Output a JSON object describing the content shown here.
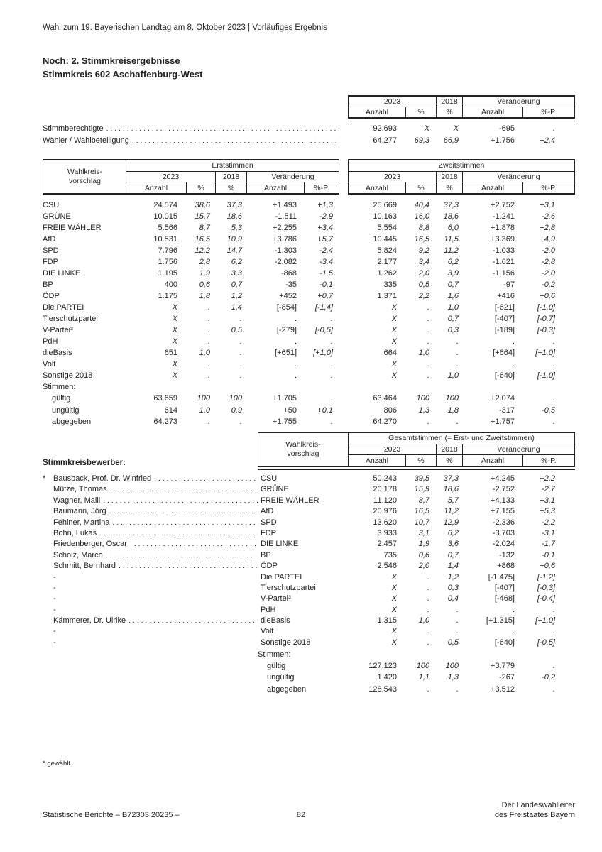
{
  "colors": {
    "text": "#1f1f1f",
    "line": "#222222",
    "background": "#ffffff"
  },
  "page": {
    "top_header": "Wahl zum 19. Bayerischen Landtag am 8. Oktober 2023 | Vorläufiges Ergebnis",
    "title_line1": "Noch: 2. Stimmkreisergebnisse",
    "title_line2": "Stimmkreis 602 Aschaffenburg-West",
    "footnote": "* gewählt",
    "footer": {
      "left": "Statistische Berichte – B72303 20235 –",
      "page_number": "82",
      "right_line1": "Der Landeswahlleiter",
      "right_line2": "des Freistaates Bayern"
    }
  },
  "labels": {
    "y2023": "2023",
    "y2018": "2018",
    "veraenderung": "Veränderung",
    "anzahl": "Anzahl",
    "pct": "%",
    "pctp": "%-P.",
    "wkv_l1": "Wahlkreis-",
    "wkv_l2": "vorschlag",
    "erststimmen": "Erststimmen",
    "zweitstimmen": "Zweitstimmen",
    "gesamtstimmen": "Gesamtstimmen (= Erst- und Zweitstimmen)",
    "stimmen": "Stimmen:",
    "stimmkreisbewerber": "Stimmkreisbewerber:"
  },
  "summary_rows": [
    {
      "label": "Stimmberechtigte",
      "cells": [
        "92.693",
        "X",
        "X",
        "-695",
        "."
      ]
    },
    {
      "label": "Wähler / Wahlbeteiligung",
      "cells": [
        "64.277",
        "69,3",
        "66,9",
        "+1.756",
        "+2,4"
      ]
    }
  ],
  "party_rows": [
    {
      "label": "CSU",
      "erst": [
        "24.574",
        "38,6",
        "37,3",
        "+1.493",
        "+1,3"
      ],
      "zweit": [
        "25.669",
        "40,4",
        "37,3",
        "+2.752",
        "+3,1"
      ]
    },
    {
      "label": "GRÜNE",
      "erst": [
        "10.015",
        "15,7",
        "18,6",
        "-1.511",
        "-2,9"
      ],
      "zweit": [
        "10.163",
        "16,0",
        "18,6",
        "-1.241",
        "-2,6"
      ]
    },
    {
      "label": "FREIE WÄHLER",
      "erst": [
        "5.566",
        "8,7",
        "5,3",
        "+2.255",
        "+3,4"
      ],
      "zweit": [
        "5.554",
        "8,8",
        "6,0",
        "+1.878",
        "+2,8"
      ]
    },
    {
      "label": "AfD",
      "erst": [
        "10.531",
        "16,5",
        "10,9",
        "+3.786",
        "+5,7"
      ],
      "zweit": [
        "10.445",
        "16,5",
        "11,5",
        "+3.369",
        "+4,9"
      ]
    },
    {
      "label": "SPD",
      "erst": [
        "7.796",
        "12,2",
        "14,7",
        "-1.303",
        "-2,4"
      ],
      "zweit": [
        "5.824",
        "9,2",
        "11,2",
        "-1.033",
        "-2,0"
      ]
    },
    {
      "label": "FDP",
      "erst": [
        "1.756",
        "2,8",
        "6,2",
        "-2.082",
        "-3,4"
      ],
      "zweit": [
        "2.177",
        "3,4",
        "6,2",
        "-1.621",
        "-2,8"
      ]
    },
    {
      "label": "DIE LINKE",
      "erst": [
        "1.195",
        "1,9",
        "3,3",
        "-868",
        "-1,5"
      ],
      "zweit": [
        "1.262",
        "2,0",
        "3,9",
        "-1.156",
        "-2,0"
      ]
    },
    {
      "label": "BP",
      "erst": [
        "400",
        "0,6",
        "0,7",
        "-35",
        "-0,1"
      ],
      "zweit": [
        "335",
        "0,5",
        "0,7",
        "-97",
        "-0,2"
      ]
    },
    {
      "label": "ÖDP",
      "erst": [
        "1.175",
        "1,8",
        "1,2",
        "+452",
        "+0,7"
      ],
      "zweit": [
        "1.371",
        "2,2",
        "1,6",
        "+416",
        "+0,6"
      ]
    },
    {
      "label": "Die PARTEI",
      "erst": [
        "X",
        ".",
        "1,4",
        "[-854]",
        "[-1,4]"
      ],
      "zweit": [
        "X",
        ".",
        "1,0",
        "[-621]",
        "[-1,0]"
      ]
    },
    {
      "label": "Tierschutzpartei",
      "erst": [
        "X",
        ".",
        ".",
        ".",
        "."
      ],
      "zweit": [
        "X",
        ".",
        "0,7",
        "[-407]",
        "[-0,7]"
      ]
    },
    {
      "label": "V-Partei³",
      "erst": [
        "X",
        ".",
        "0,5",
        "[-279]",
        "[-0,5]"
      ],
      "zweit": [
        "X",
        ".",
        "0,3",
        "[-189]",
        "[-0,3]"
      ]
    },
    {
      "label": "PdH",
      "erst": [
        "X",
        ".",
        ".",
        ".",
        "."
      ],
      "zweit": [
        "X",
        ".",
        ".",
        ".",
        "."
      ]
    },
    {
      "label": "dieBasis",
      "erst": [
        "651",
        "1,0",
        ".",
        "[+651]",
        "[+1,0]"
      ],
      "zweit": [
        "664",
        "1,0",
        ".",
        "[+664]",
        "[+1,0]"
      ]
    },
    {
      "label": "Volt",
      "erst": [
        "X",
        ".",
        ".",
        ".",
        "."
      ],
      "zweit": [
        "X",
        ".",
        ".",
        ".",
        "."
      ]
    },
    {
      "label": "Sonstige 2018",
      "erst": [
        "X",
        ".",
        ".",
        ".",
        "."
      ],
      "zweit": [
        "X",
        ".",
        "1,0",
        "[-640]",
        "[-1,0]"
      ]
    }
  ],
  "main_stimmen": [
    {
      "label": "gültig",
      "erst": [
        "63.659",
        "100",
        "100",
        "+1.705",
        "."
      ],
      "zweit": [
        "63.464",
        "100",
        "100",
        "+2.074",
        "."
      ]
    },
    {
      "label": "ungültig",
      "erst": [
        "614",
        "1,0",
        "0,9",
        "+50",
        "+0,1"
      ],
      "zweit": [
        "806",
        "1,3",
        "1,8",
        "-317",
        "-0,5"
      ]
    },
    {
      "label": "abgegeben",
      "erst": [
        "64.273",
        ".",
        ".",
        "+1.755",
        "."
      ],
      "zweit": [
        "64.270",
        ".",
        ".",
        "+1.757",
        "."
      ]
    }
  ],
  "candidate_rows": [
    {
      "star": "*",
      "name": "Bausback, Prof. Dr. Winfried",
      "party": "CSU",
      "cells": [
        "50.243",
        "39,5",
        "37,3",
        "+4.245",
        "+2,2"
      ]
    },
    {
      "star": "",
      "name": "Mütze, Thomas",
      "party": "GRÜNE",
      "cells": [
        "20.178",
        "15,9",
        "18,6",
        "-2.752",
        "-2,7"
      ]
    },
    {
      "star": "",
      "name": "Wagner, Maili",
      "party": "FREIE WÄHLER",
      "cells": [
        "11.120",
        "8,7",
        "5,7",
        "+4.133",
        "+3,1"
      ]
    },
    {
      "star": "",
      "name": "Baumann, Jörg",
      "party": "AfD",
      "cells": [
        "20.976",
        "16,5",
        "11,2",
        "+7.155",
        "+5,3"
      ]
    },
    {
      "star": "",
      "name": "Fehlner, Martina",
      "party": "SPD",
      "cells": [
        "13.620",
        "10,7",
        "12,9",
        "-2.336",
        "-2,2"
      ]
    },
    {
      "star": "",
      "name": "Bohn, Lukas",
      "party": "FDP",
      "cells": [
        "3.933",
        "3,1",
        "6,2",
        "-3.703",
        "-3,1"
      ]
    },
    {
      "star": "",
      "name": "Friedenberger, Oscar",
      "party": "DIE LINKE",
      "cells": [
        "2.457",
        "1,9",
        "3,6",
        "-2.024",
        "-1,7"
      ]
    },
    {
      "star": "",
      "name": "Scholz, Marco",
      "party": "BP",
      "cells": [
        "735",
        "0,6",
        "0,7",
        "-132",
        "-0,1"
      ]
    },
    {
      "star": "",
      "name": "Schmitt, Bernhard",
      "party": "ÖDP",
      "cells": [
        "2.546",
        "2,0",
        "1,4",
        "+868",
        "+0,6"
      ]
    },
    {
      "star": "",
      "name": "-",
      "party": "Die PARTEI",
      "cells": [
        "X",
        ".",
        "1,2",
        "[-1.475]",
        "[-1,2]"
      ]
    },
    {
      "star": "",
      "name": "-",
      "party": "Tierschutzpartei",
      "cells": [
        "X",
        ".",
        "0,3",
        "[-407]",
        "[-0,3]"
      ]
    },
    {
      "star": "",
      "name": "-",
      "party": "V-Partei³",
      "cells": [
        "X",
        ".",
        "0,4",
        "[-468]",
        "[-0,4]"
      ]
    },
    {
      "star": "",
      "name": "-",
      "party": "PdH",
      "cells": [
        "X",
        ".",
        ".",
        ".",
        "."
      ]
    },
    {
      "star": "",
      "name": "Kämmerer, Dr. Ulrike",
      "party": "dieBasis",
      "cells": [
        "1.315",
        "1,0",
        ".",
        "[+1.315]",
        "[+1,0]"
      ]
    },
    {
      "star": "",
      "name": "-",
      "party": "Volt",
      "cells": [
        "X",
        ".",
        ".",
        ".",
        "."
      ]
    },
    {
      "star": "",
      "name": "-",
      "party": "Sonstige 2018",
      "cells": [
        "X",
        ".",
        "0,5",
        "[-640]",
        "[-0,5]"
      ]
    }
  ],
  "candidate_stimmen": [
    {
      "label": "gültig",
      "cells": [
        "127.123",
        "100",
        "100",
        "+3.779",
        "."
      ]
    },
    {
      "label": "ungültig",
      "cells": [
        "1.420",
        "1,1",
        "1,3",
        "-267",
        "-0,2"
      ]
    },
    {
      "label": "abgegeben",
      "cells": [
        "128.543",
        ".",
        ".",
        "+3.512",
        "."
      ]
    }
  ]
}
